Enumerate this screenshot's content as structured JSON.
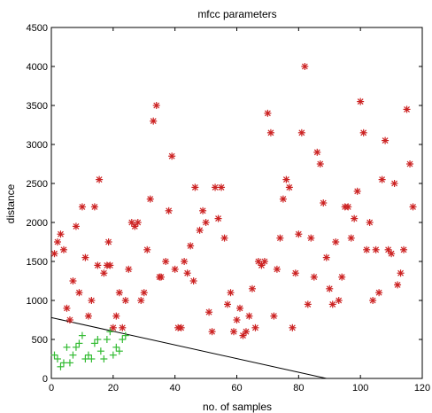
{
  "chart_data": {
    "type": "scatter",
    "title": "mfcc parameters",
    "xlabel": "no. of samples",
    "ylabel": "distance",
    "xlim": [
      0,
      120
    ],
    "ylim": [
      0,
      4500
    ],
    "x_ticks": [
      0,
      20,
      40,
      60,
      80,
      100,
      120
    ],
    "y_ticks": [
      0,
      500,
      1000,
      1500,
      2000,
      2500,
      3000,
      3500,
      4000,
      4500
    ],
    "grid": false,
    "legend": "none",
    "series": [
      {
        "marker": "*",
        "color": "#cc2222",
        "points": [
          [
            1,
            1600
          ],
          [
            2,
            1750
          ],
          [
            3,
            1850
          ],
          [
            4,
            1650
          ],
          [
            5,
            900
          ],
          [
            6,
            750
          ],
          [
            7,
            1250
          ],
          [
            8,
            1950
          ],
          [
            9,
            1100
          ],
          [
            10,
            2200
          ],
          [
            11,
            1550
          ],
          [
            12,
            800
          ],
          [
            13,
            1000
          ],
          [
            14,
            2200
          ],
          [
            15,
            1450
          ],
          [
            15.5,
            2550
          ],
          [
            17,
            1350
          ],
          [
            18,
            1450
          ],
          [
            18.5,
            1750
          ],
          [
            19,
            1450
          ],
          [
            20,
            650
          ],
          [
            21,
            800
          ],
          [
            22,
            1100
          ],
          [
            23,
            650
          ],
          [
            24,
            1000
          ],
          [
            25,
            1400
          ],
          [
            26,
            2000
          ],
          [
            27,
            1950
          ],
          [
            28,
            2000
          ],
          [
            29,
            1000
          ],
          [
            30,
            1100
          ],
          [
            31,
            1650
          ],
          [
            32,
            2300
          ],
          [
            33,
            3300
          ],
          [
            34,
            3500
          ],
          [
            35,
            1300
          ],
          [
            35.5,
            1300
          ],
          [
            37,
            1500
          ],
          [
            38,
            2150
          ],
          [
            39,
            2850
          ],
          [
            40,
            1400
          ],
          [
            41,
            650
          ],
          [
            42,
            650
          ],
          [
            43,
            1500
          ],
          [
            44,
            1350
          ],
          [
            45,
            1700
          ],
          [
            46,
            1250
          ],
          [
            46.5,
            2450
          ],
          [
            48,
            1900
          ],
          [
            49,
            2150
          ],
          [
            50,
            2000
          ],
          [
            51,
            850
          ],
          [
            52,
            600
          ],
          [
            53,
            2450
          ],
          [
            54,
            2050
          ],
          [
            55,
            2450
          ],
          [
            56,
            1800
          ],
          [
            57,
            950
          ],
          [
            58,
            1100
          ],
          [
            59,
            600
          ],
          [
            60,
            750
          ],
          [
            61,
            900
          ],
          [
            62,
            550
          ],
          [
            63,
            600
          ],
          [
            64,
            800
          ],
          [
            65,
            1150
          ],
          [
            66,
            650
          ],
          [
            67,
            1500
          ],
          [
            68,
            1450
          ],
          [
            69,
            1500
          ],
          [
            70,
            3400
          ],
          [
            71,
            3150
          ],
          [
            72,
            800
          ],
          [
            73,
            1400
          ],
          [
            74,
            1800
          ],
          [
            75,
            2300
          ],
          [
            76,
            2550
          ],
          [
            77,
            2450
          ],
          [
            78,
            650
          ],
          [
            79,
            1350
          ],
          [
            80,
            1850
          ],
          [
            81,
            3150
          ],
          [
            82,
            4000
          ],
          [
            83,
            950
          ],
          [
            84,
            1800
          ],
          [
            85,
            1300
          ],
          [
            86,
            2900
          ],
          [
            87,
            2750
          ],
          [
            88,
            2250
          ],
          [
            89,
            1550
          ],
          [
            90,
            1150
          ],
          [
            91,
            950
          ],
          [
            92,
            1750
          ],
          [
            93,
            1000
          ],
          [
            94,
            1300
          ],
          [
            95,
            2200
          ],
          [
            96,
            2200
          ],
          [
            97,
            1800
          ],
          [
            98,
            2050
          ],
          [
            99,
            2400
          ],
          [
            100,
            3550
          ],
          [
            101,
            3150
          ],
          [
            102,
            1650
          ],
          [
            103,
            2000
          ],
          [
            104,
            1000
          ],
          [
            105,
            1650
          ],
          [
            106,
            1100
          ],
          [
            107,
            2550
          ],
          [
            108,
            3050
          ],
          [
            109,
            1650
          ],
          [
            110,
            1600
          ],
          [
            111,
            2500
          ],
          [
            112,
            1200
          ],
          [
            113,
            1350
          ],
          [
            114,
            1650
          ],
          [
            115,
            3450
          ],
          [
            116,
            2750
          ],
          [
            117,
            2200
          ]
        ]
      },
      {
        "marker": "+",
        "color": "#33bb33",
        "points": [
          [
            1,
            300
          ],
          [
            2,
            250
          ],
          [
            3,
            150
          ],
          [
            4,
            200
          ],
          [
            5,
            400
          ],
          [
            6,
            200
          ],
          [
            7,
            300
          ],
          [
            8,
            400
          ],
          [
            9,
            450
          ],
          [
            10,
            550
          ],
          [
            11,
            250
          ],
          [
            12,
            300
          ],
          [
            13,
            250
          ],
          [
            14,
            450
          ],
          [
            15,
            500
          ],
          [
            16,
            350
          ],
          [
            17,
            250
          ],
          [
            18,
            500
          ],
          [
            19,
            600
          ],
          [
            20,
            300
          ],
          [
            21,
            400
          ],
          [
            22,
            350
          ],
          [
            23,
            500
          ],
          [
            24,
            550
          ]
        ]
      }
    ],
    "line": {
      "color": "#000000",
      "points": [
        [
          0,
          780
        ],
        [
          89,
          0
        ]
      ]
    }
  }
}
